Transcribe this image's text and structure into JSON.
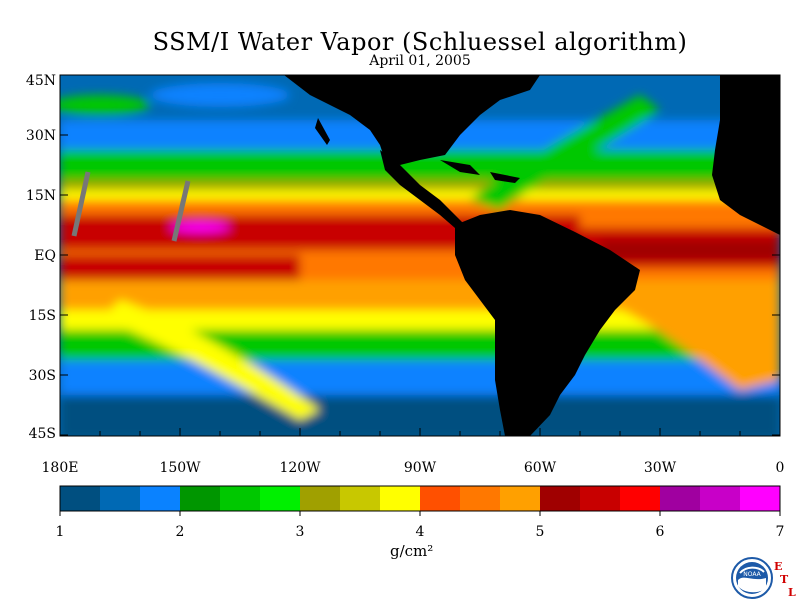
{
  "title": "SSM/I Water Vapor (Schluessel algorithm)",
  "subtitle": "April 01, 2005",
  "lat_labels": [
    "45N",
    "30N",
    "15N",
    "EQ",
    "15S",
    "30S",
    "45S"
  ],
  "lon_labels": [
    "180E",
    "150W",
    "120W",
    "90W",
    "60W",
    "30W",
    "0"
  ],
  "colorbar": {
    "colors": [
      "#004f80",
      "#0069b4",
      "#0a82ff",
      "#009600",
      "#00c800",
      "#00f000",
      "#a0a000",
      "#c8c800",
      "#ffff00",
      "#ff5000",
      "#ff7800",
      "#ffa000",
      "#a00000",
      "#c80000",
      "#ff0000",
      "#a000a0",
      "#c800c8",
      "#ff00ff"
    ],
    "tick_labels": [
      "1",
      "2",
      "3",
      "4",
      "5",
      "6",
      "7"
    ],
    "range": [
      1,
      7
    ],
    "unit": "g/cm²"
  },
  "logos": {
    "noaa_text": "NOAA",
    "etl_letters": [
      "E",
      "T",
      "L"
    ]
  },
  "palette": {
    "land": "#000000",
    "frame": "#000000"
  }
}
